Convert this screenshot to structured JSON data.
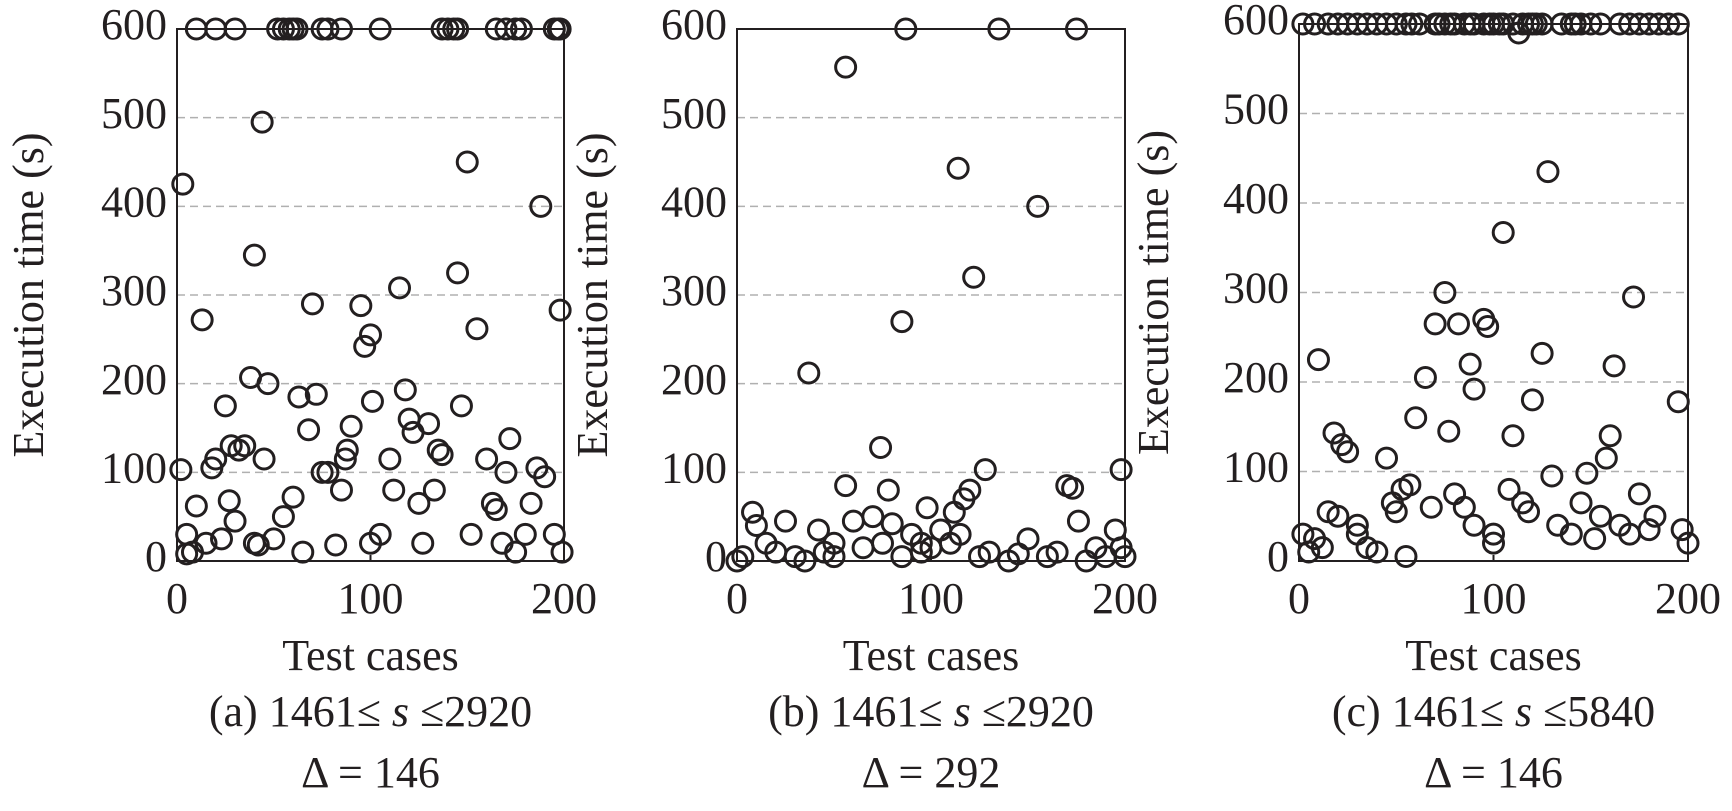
{
  "chart_data": [
    {
      "type": "scatter",
      "xlabel": "Test cases",
      "ylabel": "Execution time (s)",
      "caption": [
        "(a) 1461≤ ",
        "s",
        " ≤2920"
      ],
      "caption2": "Δ = 146",
      "xlim": [
        0,
        200
      ],
      "xticks": [
        0,
        100,
        200
      ],
      "ylim": [
        0,
        600
      ],
      "yticks": [
        0,
        100,
        200,
        300,
        400,
        500,
        600
      ],
      "grid": true,
      "color": "#231f20",
      "x": [
        10,
        20,
        30,
        52,
        55,
        58,
        60,
        62,
        75,
        78,
        85,
        105,
        137,
        140,
        143,
        145,
        165,
        170,
        175,
        178,
        195,
        197,
        198,
        3,
        2,
        5,
        8,
        10,
        13,
        15,
        18,
        20,
        23,
        25,
        27,
        28,
        30,
        32,
        35,
        38,
        40,
        42,
        44,
        45,
        47,
        50,
        55,
        60,
        63,
        65,
        68,
        70,
        72,
        75,
        78,
        82,
        85,
        87,
        88,
        90,
        95,
        97,
        100,
        101,
        105,
        110,
        112,
        115,
        118,
        120,
        122,
        125,
        127,
        130,
        133,
        135,
        137,
        145,
        147,
        150,
        152,
        155,
        160,
        163,
        165,
        168,
        170,
        172,
        175,
        180,
        183,
        186,
        188,
        190,
        195,
        198,
        199,
        5,
        40,
        100
      ],
      "values": [
        600,
        600,
        600,
        600,
        600,
        600,
        600,
        600,
        600,
        600,
        600,
        600,
        600,
        600,
        600,
        600,
        600,
        600,
        600,
        600,
        600,
        600,
        600,
        425,
        103,
        30,
        10,
        62,
        272,
        20,
        105,
        115,
        25,
        175,
        68,
        130,
        45,
        125,
        130,
        207,
        345,
        18,
        495,
        115,
        200,
        25,
        50,
        72,
        185,
        10,
        148,
        290,
        188,
        100,
        100,
        18,
        80,
        115,
        125,
        152,
        288,
        242,
        255,
        180,
        30,
        115,
        80,
        308,
        193,
        160,
        145,
        65,
        20,
        155,
        80,
        125,
        120,
        325,
        175,
        450,
        30,
        262,
        115,
        65,
        58,
        20,
        100,
        138,
        10,
        30,
        65,
        105,
        400,
        95,
        30,
        283,
        10,
        8,
        20,
        20
      ]
    },
    {
      "type": "scatter",
      "xlabel": "Test cases",
      "ylabel": "Execution time (s)",
      "caption": [
        "(b) 1461≤ ",
        "s",
        " ≤2920"
      ],
      "caption2": "Δ = 292",
      "xlim": [
        0,
        200
      ],
      "xticks": [
        0,
        100,
        200
      ],
      "ylim": [
        0,
        600
      ],
      "yticks": [
        0,
        100,
        200,
        300,
        400,
        500,
        600
      ],
      "grid": true,
      "color": "#231f20",
      "x": [
        87,
        135,
        175,
        56,
        114,
        155,
        122,
        85,
        37,
        74,
        198,
        128,
        56,
        78,
        120,
        117,
        112,
        98,
        105,
        8,
        10,
        25,
        42,
        60,
        70,
        80,
        90,
        95,
        100,
        130,
        150,
        170,
        173,
        176,
        195,
        198,
        0,
        3,
        15,
        20,
        30,
        35,
        45,
        50,
        65,
        75,
        85,
        95,
        110,
        125,
        140,
        145,
        160,
        165,
        180,
        185,
        190,
        200,
        115,
        50
      ],
      "values": [
        600,
        600,
        600,
        557,
        443,
        400,
        320,
        270,
        212,
        128,
        103,
        103,
        85,
        80,
        80,
        70,
        55,
        60,
        35,
        55,
        40,
        45,
        35,
        45,
        50,
        42,
        30,
        20,
        15,
        10,
        25,
        85,
        82,
        45,
        35,
        15,
        0,
        5,
        20,
        10,
        5,
        0,
        10,
        5,
        15,
        20,
        5,
        10,
        20,
        5,
        0,
        8,
        5,
        10,
        0,
        15,
        5,
        5,
        30,
        20
      ]
    },
    {
      "type": "scatter",
      "xlabel": "Test cases",
      "ylabel": "Execution time (s)",
      "caption": [
        "(c) 1461≤ ",
        "s",
        " ≤5840"
      ],
      "caption2": "Δ = 146",
      "xlim": [
        0,
        200
      ],
      "xticks": [
        0,
        100,
        200
      ],
      "ylim": [
        0,
        600
      ],
      "yticks": [
        0,
        100,
        200,
        300,
        400,
        500,
        600
      ],
      "grid": true,
      "color": "#231f20",
      "x": [
        2,
        8,
        15,
        20,
        25,
        30,
        35,
        40,
        45,
        50,
        55,
        58,
        62,
        70,
        72,
        75,
        78,
        80,
        85,
        88,
        90,
        95,
        98,
        100,
        103,
        105,
        110,
        115,
        118,
        120,
        122,
        125,
        135,
        140,
        142,
        145,
        150,
        155,
        165,
        170,
        175,
        180,
        185,
        190,
        195,
        113,
        10,
        15,
        18,
        20,
        22,
        25,
        30,
        35,
        40,
        45,
        48,
        50,
        53,
        55,
        57,
        60,
        65,
        68,
        70,
        75,
        77,
        80,
        82,
        85,
        88,
        90,
        95,
        97,
        100,
        105,
        108,
        110,
        115,
        118,
        120,
        125,
        128,
        130,
        133,
        140,
        145,
        148,
        152,
        155,
        158,
        160,
        162,
        165,
        170,
        172,
        175,
        180,
        183,
        195,
        197,
        200,
        2,
        5,
        8,
        12,
        30,
        100,
        90
      ],
      "values": [
        600,
        600,
        600,
        600,
        600,
        600,
        600,
        600,
        600,
        600,
        600,
        600,
        600,
        600,
        600,
        600,
        600,
        600,
        600,
        600,
        600,
        600,
        600,
        600,
        600,
        600,
        600,
        600,
        600,
        600,
        600,
        600,
        600,
        600,
        600,
        600,
        600,
        600,
        600,
        600,
        600,
        600,
        600,
        600,
        600,
        590,
        225,
        55,
        143,
        50,
        130,
        122,
        40,
        15,
        10,
        115,
        65,
        55,
        80,
        5,
        85,
        160,
        205,
        60,
        265,
        300,
        145,
        75,
        265,
        60,
        220,
        192,
        270,
        262,
        20,
        367,
        80,
        140,
        65,
        55,
        180,
        232,
        435,
        95,
        40,
        30,
        65,
        98,
        25,
        50,
        115,
        140,
        218,
        40,
        30,
        295,
        75,
        35,
        50,
        178,
        35,
        20,
        30,
        10,
        25,
        15,
        30,
        30,
        40
      ]
    }
  ]
}
